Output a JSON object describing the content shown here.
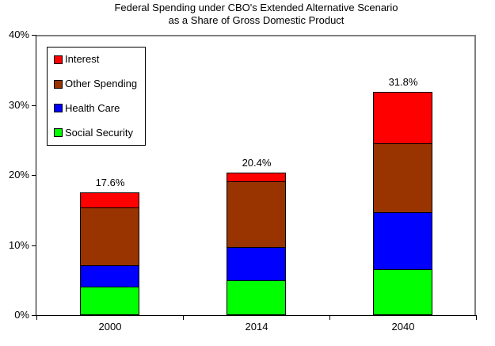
{
  "title": {
    "line1": "Federal Spending under CBO's Extended Alternative Scenario",
    "line2": "as a Share of Gross Domestic Product"
  },
  "chart_data": {
    "type": "bar",
    "stacked": true,
    "title": "Federal Spending under CBO's Extended Alternative Scenario as a Share of Gross Domestic Product",
    "categories": [
      "2000",
      "2014",
      "2040"
    ],
    "series": [
      {
        "name": "Social Security",
        "color": "#00FF00",
        "values": [
          4.1,
          5.0,
          6.5
        ]
      },
      {
        "name": "Health Care",
        "color": "#0000FF",
        "values": [
          3.1,
          4.8,
          8.1
        ]
      },
      {
        "name": "Other Spending",
        "color": "#993300",
        "values": [
          8.3,
          9.4,
          9.8
        ]
      },
      {
        "name": "Interest",
        "color": "#FF0000",
        "values": [
          2.1,
          1.2,
          7.4
        ]
      }
    ],
    "totals": [
      17.6,
      20.4,
      31.8
    ],
    "bar_value_labels": [
      "17.6%",
      "20.4%",
      "31.8%"
    ],
    "y_tick_labels": [
      "40%",
      "30%",
      "20%",
      "10%",
      "0%"
    ],
    "ylim": [
      0,
      40
    ],
    "xlabel": "",
    "ylabel": "",
    "grid": false,
    "legend_position": "top-left",
    "legend_order": [
      "Interest",
      "Other Spending",
      "Health Care",
      "Social Security"
    ],
    "axis_color": "#000000",
    "plot_border_color": "#808080",
    "background_color": "#FFFFFF"
  }
}
